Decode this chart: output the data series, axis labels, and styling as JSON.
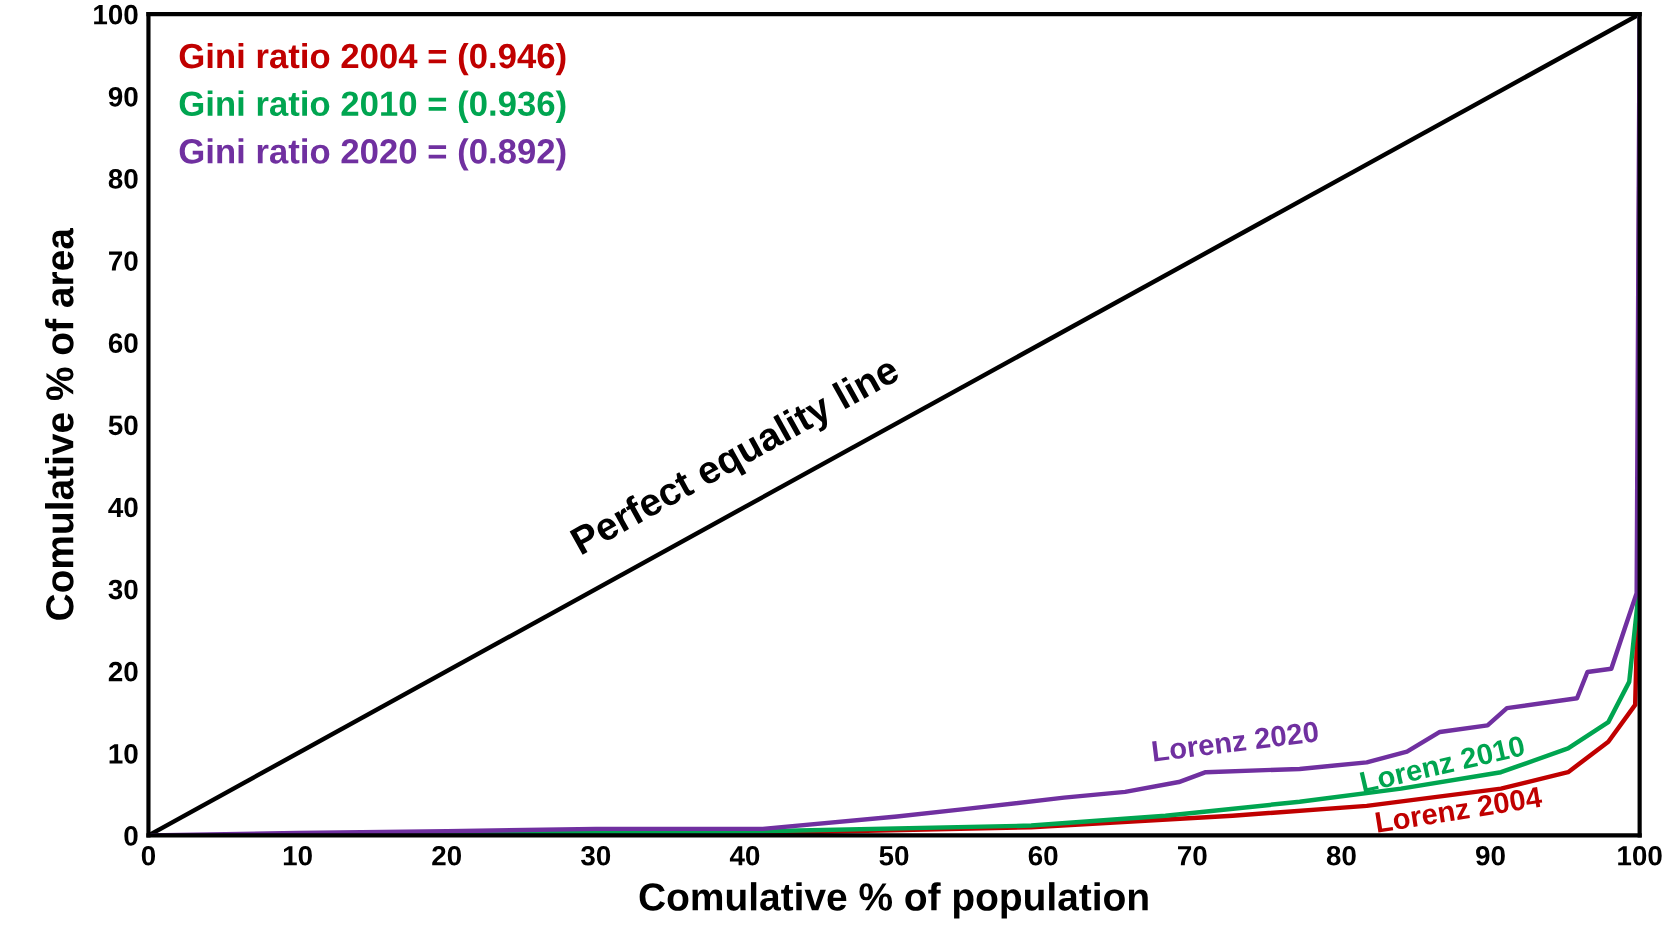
{
  "chart_data": {
    "type": "line",
    "xlabel": "Comulative % of population",
    "ylabel": "Comulative % of area",
    "annotations": [
      "Gini ratio 2004 = (0.946)",
      "Gini ratio 2010 = (0.936)",
      "Gini ratio 2020 = (0.892)"
    ],
    "xlim": [
      0,
      100
    ],
    "ylim": [
      0,
      100
    ],
    "xticks": [
      0,
      10,
      20,
      30,
      40,
      50,
      60,
      70,
      80,
      90,
      100
    ],
    "yticks": [
      0,
      10,
      20,
      30,
      40,
      50,
      60,
      70,
      80,
      90,
      100
    ],
    "grid": false,
    "legend": false,
    "marker": "none",
    "line_style": "solid",
    "series": [
      {
        "name": "Perfect equality line",
        "color": "#000000",
        "x": [
          0,
          100
        ],
        "values": [
          0,
          100
        ]
      },
      {
        "name": "Lorenz 2004",
        "color": "#c00000",
        "x": [
          30,
          41.2,
          59.2,
          72.7,
          81.7,
          90.7,
          95.2,
          97.9,
          99.7,
          99.9,
          100
        ],
        "values": [
          0.3,
          0.3,
          1.0,
          2.4,
          3.6,
          5.7,
          7.7,
          11.4,
          15.9,
          30,
          100
        ]
      },
      {
        "name": "Lorenz 2010",
        "color": "#00a550",
        "x": [
          0,
          10,
          20,
          30,
          41.2,
          59.2,
          68.2,
          77.2,
          84.0,
          90.7,
          95.2,
          97.9,
          99.3,
          99.9,
          100
        ],
        "values": [
          0,
          0.1,
          0.2,
          0.3,
          0.5,
          1.2,
          2.4,
          4.1,
          5.7,
          7.7,
          10.6,
          13.8,
          18.7,
          29,
          100
        ]
      },
      {
        "name": "Lorenz 2020",
        "color": "#7030a0",
        "x": [
          0,
          10,
          20,
          30,
          41.2,
          50.2,
          54.7,
          61.4,
          65.5,
          69.1,
          70.9,
          77.2,
          81.7,
          84.4,
          86.6,
          89.8,
          91.1,
          95.8,
          96.5,
          98.1,
          99.0,
          99.8,
          100
        ],
        "values": [
          0,
          0.3,
          0.5,
          0.8,
          0.8,
          2.3,
          3.2,
          4.6,
          5.3,
          6.5,
          7.7,
          8.1,
          8.9,
          10.2,
          12.6,
          13.4,
          15.5,
          16.7,
          19.9,
          20.3,
          25.2,
          29.5,
          100
        ]
      }
    ]
  }
}
